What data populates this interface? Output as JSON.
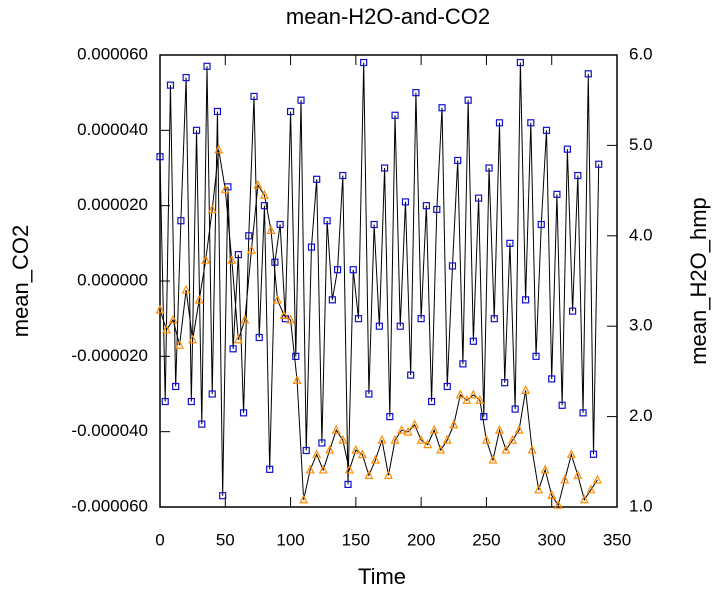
{
  "chart_data": {
    "type": "line",
    "title": "mean-H2O-and-CO2",
    "x_label": "Time",
    "y_label": "mean_CO2",
    "y2_label": "mean_H2O_hmp",
    "xlim": [
      0,
      350
    ],
    "xticks": [
      0,
      50,
      100,
      150,
      200,
      250,
      300,
      350
    ],
    "ylim": [
      -6e-05,
      6e-05
    ],
    "yticks": [
      {
        "value": -6e-05,
        "label": "-0.000060"
      },
      {
        "value": -4e-05,
        "label": "-0.000040"
      },
      {
        "value": -2e-05,
        "label": "-0.000020"
      },
      {
        "value": 0,
        "label": "0.000000"
      },
      {
        "value": 2e-05,
        "label": "0.000020"
      },
      {
        "value": 4e-05,
        "label": "0.000040"
      },
      {
        "value": 6e-05,
        "label": "0.000060"
      }
    ],
    "y2lim": [
      1,
      6
    ],
    "y2ticks": [
      {
        "value": 1,
        "label": "1.0"
      },
      {
        "value": 2,
        "label": "2.0"
      },
      {
        "value": 3,
        "label": "3.0"
      },
      {
        "value": 4,
        "label": "4.0"
      },
      {
        "value": 5,
        "label": "5.0"
      },
      {
        "value": 6,
        "label": "6.0"
      }
    ],
    "series": [
      {
        "color": "#1010d0",
        "marker": "square",
        "x": [
          0,
          4,
          8,
          12,
          16,
          20,
          24,
          28,
          32,
          36,
          40,
          44,
          48,
          52,
          56,
          60,
          64,
          68,
          72,
          76,
          80,
          84,
          88,
          92,
          96,
          100,
          104,
          108,
          112,
          116,
          120,
          124,
          128,
          132,
          136,
          140,
          144,
          148,
          152,
          156,
          160,
          164,
          168,
          172,
          176,
          180,
          184,
          188,
          192,
          196,
          200,
          204,
          208,
          212,
          216,
          220,
          224,
          228,
          232,
          236,
          240,
          244,
          248,
          252,
          256,
          260,
          264,
          268,
          272,
          276,
          280,
          284,
          288,
          292,
          296,
          300,
          304,
          308,
          312,
          316,
          320,
          324,
          328,
          332,
          336
        ],
        "values": [
          3.3e-05,
          -3.2e-05,
          5.2e-05,
          -2.8e-05,
          1.6e-05,
          5.4e-05,
          -3.2e-05,
          4e-05,
          -3.8e-05,
          5.7e-05,
          -3e-05,
          4.5e-05,
          -5.7e-05,
          2.5e-05,
          -1.8e-05,
          7e-06,
          -3.5e-05,
          1.2e-05,
          4.9e-05,
          -1.5e-05,
          2e-05,
          -5e-05,
          5e-06,
          1.5e-05,
          -1e-05,
          4.5e-05,
          -2e-05,
          4.8e-05,
          -4.5e-05,
          9e-06,
          2.7e-05,
          -4.3e-05,
          1.6e-05,
          -5e-06,
          3e-06,
          2.8e-05,
          -5.4e-05,
          3e-06,
          -1e-05,
          5.8e-05,
          -3e-05,
          1.5e-05,
          -1.2e-05,
          3e-05,
          -3.6e-05,
          4.4e-05,
          -1.2e-05,
          2.1e-05,
          -2.5e-05,
          5e-05,
          -1e-05,
          2e-05,
          -3.2e-05,
          1.9e-05,
          4.6e-05,
          -2.8e-05,
          4e-06,
          3.2e-05,
          -2.2e-05,
          4.8e-05,
          -1.6e-05,
          2.2e-05,
          -3.6e-05,
          3e-05,
          -1e-05,
          4.2e-05,
          -2.7e-05,
          1e-05,
          -3.4e-05,
          5.8e-05,
          -5e-06,
          4.2e-05,
          -2e-05,
          1.5e-05,
          4e-05,
          -2.6e-05,
          2.3e-05,
          -3.3e-05,
          3.5e-05,
          -8e-06,
          2.8e-05,
          -3.5e-05,
          5.5e-05,
          -4.6e-05,
          3.1e-05
        ]
      },
      {
        "color": "#ff8c00",
        "marker": "triangle",
        "axis": "y2",
        "x": [
          0,
          5,
          10,
          15,
          20,
          25,
          30,
          35,
          40,
          45,
          50,
          55,
          60,
          65,
          70,
          75,
          80,
          85,
          90,
          95,
          100,
          105,
          110,
          115,
          120,
          125,
          130,
          135,
          140,
          145,
          150,
          155,
          160,
          165,
          170,
          175,
          180,
          185,
          190,
          195,
          200,
          205,
          210,
          215,
          220,
          225,
          230,
          235,
          240,
          245,
          250,
          255,
          260,
          265,
          270,
          275,
          280,
          285,
          290,
          295,
          300,
          305,
          310,
          315,
          320,
          325,
          330,
          335
        ],
        "values": [
          3.18,
          2.96,
          3.07,
          2.79,
          3.4,
          2.85,
          3.29,
          3.73,
          4.29,
          4.95,
          4.51,
          3.73,
          2.85,
          3.07,
          3.84,
          4.56,
          4.45,
          4.06,
          3.29,
          3.12,
          3.07,
          2.4,
          1.08,
          1.41,
          1.58,
          1.41,
          1.63,
          1.85,
          1.74,
          1.41,
          1.63,
          1.58,
          1.35,
          1.52,
          1.74,
          1.35,
          1.74,
          1.85,
          1.83,
          1.91,
          1.74,
          1.69,
          1.85,
          1.63,
          1.74,
          1.91,
          2.24,
          2.18,
          2.24,
          2.18,
          1.74,
          1.52,
          1.85,
          1.63,
          1.74,
          1.85,
          2.29,
          1.63,
          1.19,
          1.41,
          1.13,
          1.02,
          1.3,
          1.58,
          1.35,
          1.08,
          1.19,
          1.3
        ]
      }
    ]
  }
}
